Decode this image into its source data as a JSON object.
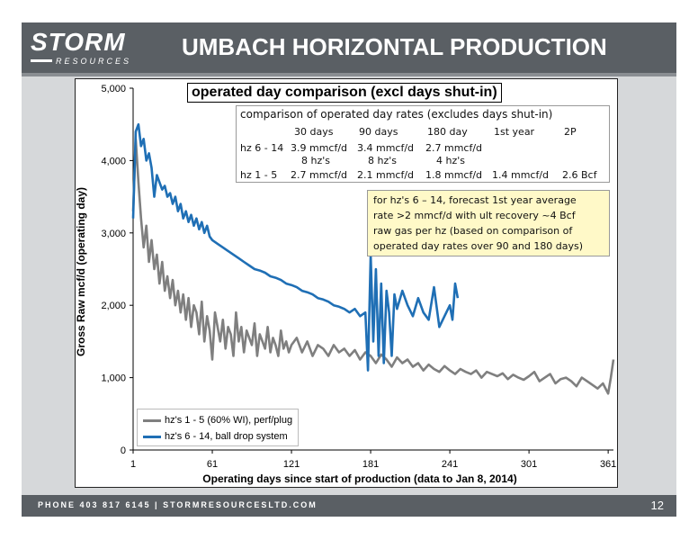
{
  "header": {
    "logo_main": "STORM",
    "logo_sub": "RESOURCES",
    "title": "UMBACH HORIZONTAL PRODUCTION"
  },
  "footer": {
    "contact": "PHONE 403 817 6145  |  STORMRESOURCESLTD.COM",
    "page_number": "12"
  },
  "table": {
    "caption": "comparison of operated day rates (excludes days shut-in)",
    "columns": [
      "30 days",
      "90 days",
      "180 day",
      "1st year",
      "2P"
    ],
    "rows": [
      {
        "label": "hz 6 - 14",
        "cells": [
          "3.9 mmcf/d",
          "3.4 mmcf/d",
          "2.7 mmcf/d",
          "",
          ""
        ],
        "sub": [
          "8 hz's",
          "8 hz's",
          "4 hz's",
          "",
          ""
        ]
      },
      {
        "label": "hz 1 - 5",
        "cells": [
          "2.7 mmcf/d",
          "2.1 mmcf/d",
          "1.8 mmcf/d",
          "1.4 mmcf/d",
          "2.6 Bcf"
        ],
        "sub": [
          "",
          "",
          "",
          "",
          ""
        ]
      }
    ]
  },
  "note": {
    "lines": [
      "for hz's 6 – 14, forecast 1st year average",
      "rate >2 mmcf/d with ult recovery ~4 Bcf",
      "raw gas per hz (based on comparison of",
      "operated day rates over 90 and 180 days)"
    ]
  },
  "chart_data": {
    "type": "line",
    "title": "operated  day comparison (excl days shut-in)",
    "xlabel": "Operating days since start of production (data to Jan 8, 2014)",
    "ylabel": "Gross Raw mcf/d (operating day)",
    "xlim": [
      1,
      365
    ],
    "ylim": [
      0,
      5000
    ],
    "x_ticks": [
      1,
      61,
      121,
      181,
      241,
      301,
      361
    ],
    "y_ticks": [
      0,
      1000,
      2000,
      3000,
      4000,
      5000
    ],
    "y_tick_labels": [
      "0",
      "1,000",
      "2,000",
      "3,000",
      "4,000",
      "5,000"
    ],
    "grid": false,
    "legend_position": "bottom-left",
    "series": [
      {
        "name": "hz's 1 - 5 (60% WI), perf/plug",
        "color": "#7f7f7f",
        "x": [
          1,
          3,
          5,
          7,
          9,
          11,
          13,
          15,
          17,
          19,
          21,
          23,
          25,
          27,
          29,
          31,
          33,
          35,
          37,
          39,
          41,
          43,
          45,
          47,
          49,
          51,
          53,
          55,
          57,
          59,
          61,
          63,
          65,
          67,
          69,
          71,
          73,
          75,
          77,
          79,
          81,
          83,
          85,
          87,
          89,
          91,
          93,
          95,
          97,
          99,
          101,
          103,
          105,
          107,
          109,
          111,
          113,
          115,
          117,
          119,
          121,
          125,
          129,
          133,
          137,
          141,
          145,
          149,
          153,
          157,
          161,
          165,
          169,
          173,
          177,
          181,
          185,
          189,
          193,
          197,
          201,
          205,
          209,
          213,
          217,
          221,
          225,
          229,
          233,
          237,
          241,
          245,
          249,
          253,
          257,
          261,
          265,
          269,
          273,
          277,
          281,
          285,
          289,
          293,
          297,
          301,
          305,
          309,
          313,
          317,
          321,
          325,
          329,
          333,
          337,
          341,
          345,
          349,
          353,
          357,
          361,
          363,
          365
        ],
        "y": [
          3300,
          4300,
          3700,
          3200,
          2800,
          3100,
          2600,
          2900,
          2500,
          2700,
          2300,
          2600,
          2200,
          2400,
          2100,
          2350,
          2000,
          2200,
          1900,
          2150,
          1800,
          2100,
          1700,
          2000,
          1900,
          1600,
          2050,
          1500,
          1850,
          1650,
          1250,
          1900,
          1700,
          1500,
          1800,
          1400,
          1700,
          1600,
          1300,
          1900,
          1500,
          1700,
          1350,
          1650,
          1550,
          1450,
          1750,
          1300,
          1600,
          1500,
          1400,
          1700,
          1350,
          1550,
          1450,
          1300,
          1650,
          1400,
          1500,
          1350,
          1450,
          1550,
          1350,
          1500,
          1300,
          1450,
          1400,
          1300,
          1450,
          1350,
          1400,
          1300,
          1380,
          1250,
          1350,
          1300,
          1200,
          1320,
          1250,
          1150,
          1280,
          1200,
          1250,
          1150,
          1200,
          1100,
          1180,
          1120,
          1080,
          1160,
          1100,
          1050,
          1120,
          1080,
          1050,
          1100,
          1000,
          1080,
          1050,
          1020,
          1060,
          980,
          1040,
          1000,
          970,
          1020,
          1080,
          950,
          1000,
          1050,
          920,
          980,
          1000,
          950,
          880,
          1000,
          950,
          900,
          850,
          920,
          780,
          1000,
          1250
        ]
      },
      {
        "name": "hz's 6 - 14, ball drop system",
        "color": "#1f6fb5",
        "x": [
          1,
          3,
          5,
          7,
          9,
          11,
          13,
          15,
          17,
          19,
          21,
          23,
          25,
          27,
          29,
          31,
          33,
          35,
          37,
          39,
          41,
          43,
          45,
          47,
          49,
          51,
          53,
          55,
          57,
          59,
          61,
          65,
          69,
          73,
          77,
          81,
          85,
          89,
          93,
          97,
          101,
          105,
          109,
          113,
          117,
          121,
          125,
          129,
          133,
          137,
          141,
          145,
          149,
          153,
          157,
          161,
          165,
          169,
          173,
          177,
          179,
          181,
          183,
          185,
          187,
          189,
          191,
          193,
          195,
          197,
          199,
          201,
          205,
          209,
          213,
          217,
          221,
          225,
          229,
          233,
          237,
          241,
          243,
          245,
          247
        ],
        "y": [
          3200,
          4400,
          4500,
          4200,
          4300,
          4000,
          4100,
          3900,
          3500,
          3800,
          3700,
          3600,
          3650,
          3500,
          3550,
          3400,
          3500,
          3300,
          3400,
          3200,
          3300,
          3150,
          3250,
          3100,
          3200,
          3050,
          3150,
          3000,
          3100,
          2950,
          2900,
          2850,
          2800,
          2750,
          2700,
          2650,
          2600,
          2550,
          2500,
          2480,
          2450,
          2400,
          2380,
          2350,
          2300,
          2280,
          2250,
          2200,
          2180,
          2150,
          2100,
          2080,
          2050,
          2000,
          1980,
          1950,
          1900,
          1950,
          1850,
          1900,
          1100,
          2700,
          1500,
          2500,
          1300,
          2300,
          1200,
          2200,
          1900,
          1300,
          2150,
          1950,
          2200,
          2000,
          1850,
          2100,
          1900,
          1800,
          2250,
          1700,
          1850,
          2000,
          1800,
          2300,
          2100
        ]
      }
    ]
  }
}
